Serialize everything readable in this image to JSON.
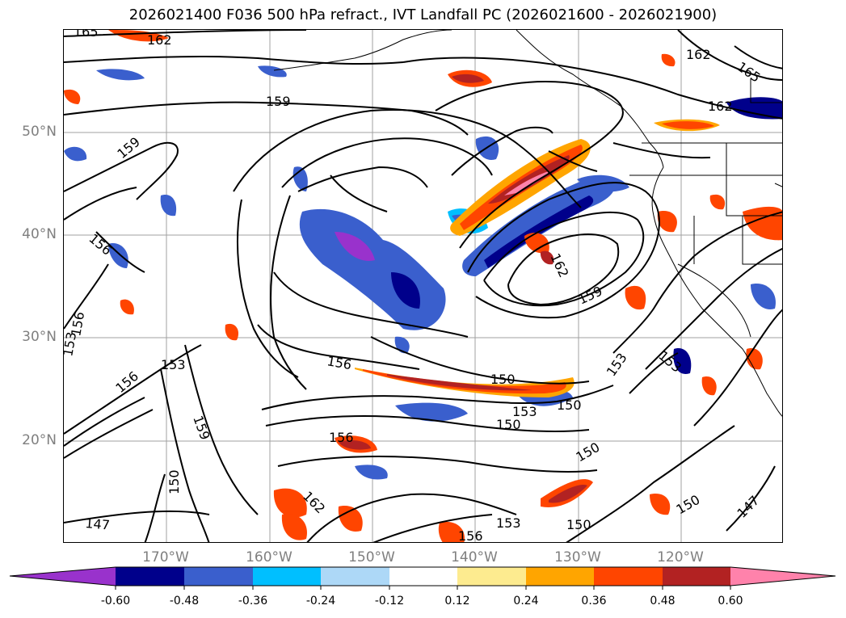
{
  "title": "2026021400 F036 500 hPa refract., IVT Landfall PC (2026021600 - 2026021900)",
  "lat_labels": [
    "50°N",
    "40°N",
    "30°N",
    "20°N"
  ],
  "lon_labels": [
    "170°W",
    "160°W",
    "150°W",
    "140°W",
    "130°W",
    "120°W"
  ],
  "colorbar": {
    "ticks": [
      "-0.60",
      "-0.48",
      "-0.36",
      "-0.24",
      "-0.12",
      "0.12",
      "0.24",
      "0.36",
      "0.48",
      "0.60"
    ],
    "colors": [
      "#9932cc",
      "#00008b",
      "#3a5fcd",
      "#00bfff",
      "#add8f7",
      "#ffffff",
      "#fdeb8f",
      "#ffa500",
      "#ff4500",
      "#b22222",
      "#ff82ab"
    ],
    "extend": "both"
  },
  "contour_labels": [
    "165",
    "162",
    "162",
    "165",
    "159",
    "162",
    "159",
    "156",
    "162",
    "159",
    "156",
    "153",
    "153",
    "156",
    "153",
    "156",
    "150",
    "153",
    "150",
    "153",
    "150",
    "159",
    "150",
    "162",
    "150",
    "147",
    "156",
    "153",
    "150",
    "150",
    "147",
    "156"
  ]
}
